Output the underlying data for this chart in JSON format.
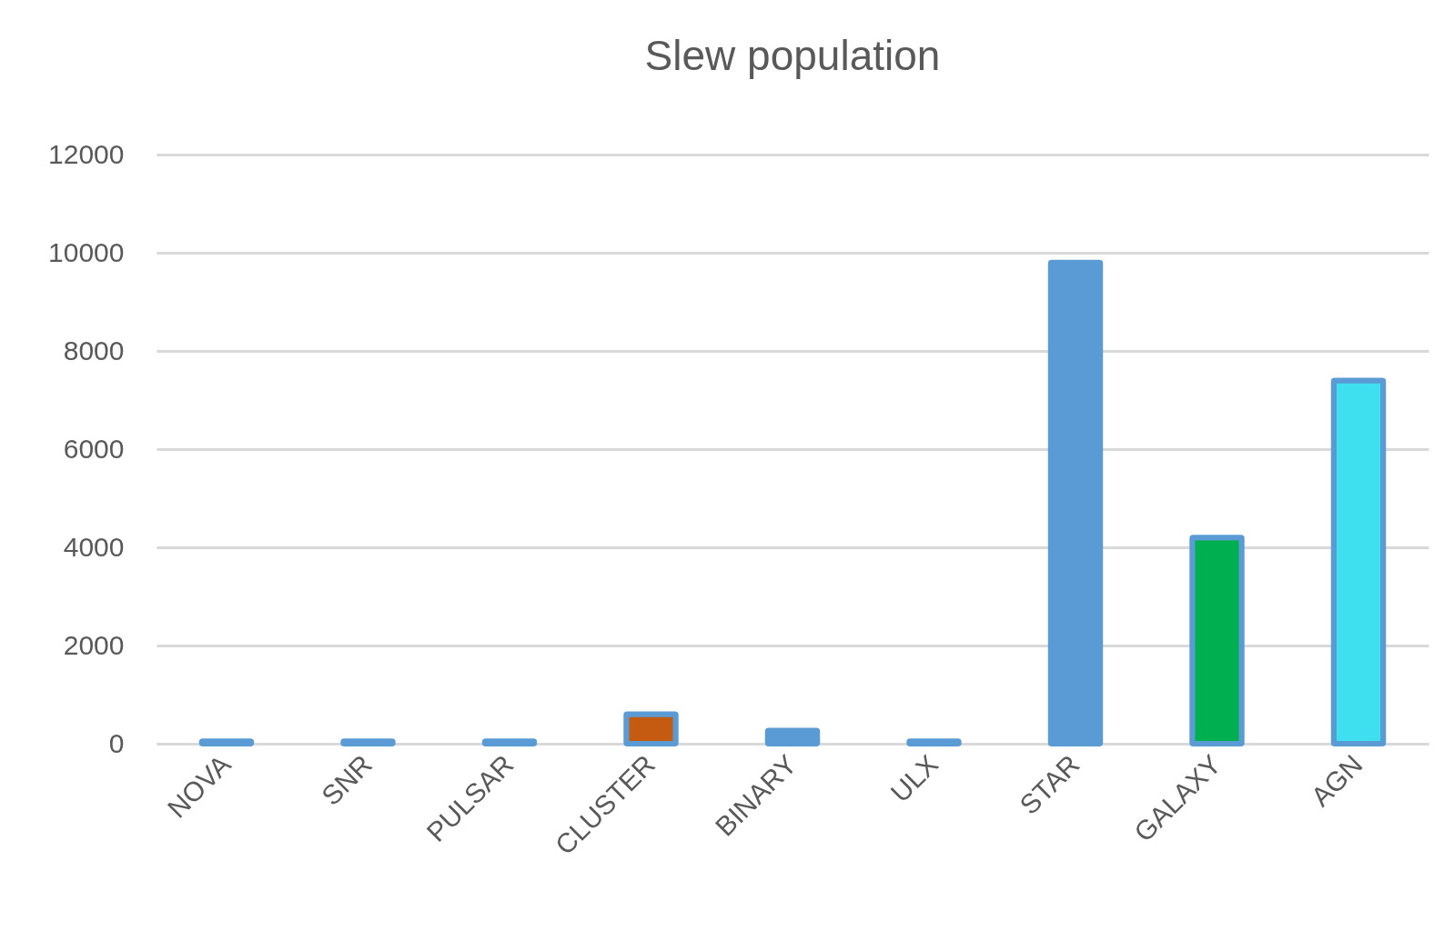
{
  "chart_data": {
    "type": "bar",
    "title": "Slew population",
    "categories": [
      "NOVA",
      "SNR",
      "PULSAR",
      "CLUSTER",
      "BINARY",
      "ULX",
      "STAR",
      "GALAXY",
      "AGN"
    ],
    "values": [
      50,
      50,
      50,
      600,
      270,
      50,
      9800,
      4200,
      7400
    ],
    "color": "#5b9bd5",
    "colors": [
      "#5b9bd5",
      "#5b9bd5",
      "#5b9bd5",
      "#c55a11",
      "#5b9bd5",
      "#5b9bd5",
      "#5b9bd5",
      "#00b050",
      "#3ee0f0"
    ],
    "ylim": [
      0,
      12000
    ],
    "yticks": [
      0,
      2000,
      4000,
      6000,
      8000,
      10000,
      12000
    ],
    "grid": "y"
  }
}
